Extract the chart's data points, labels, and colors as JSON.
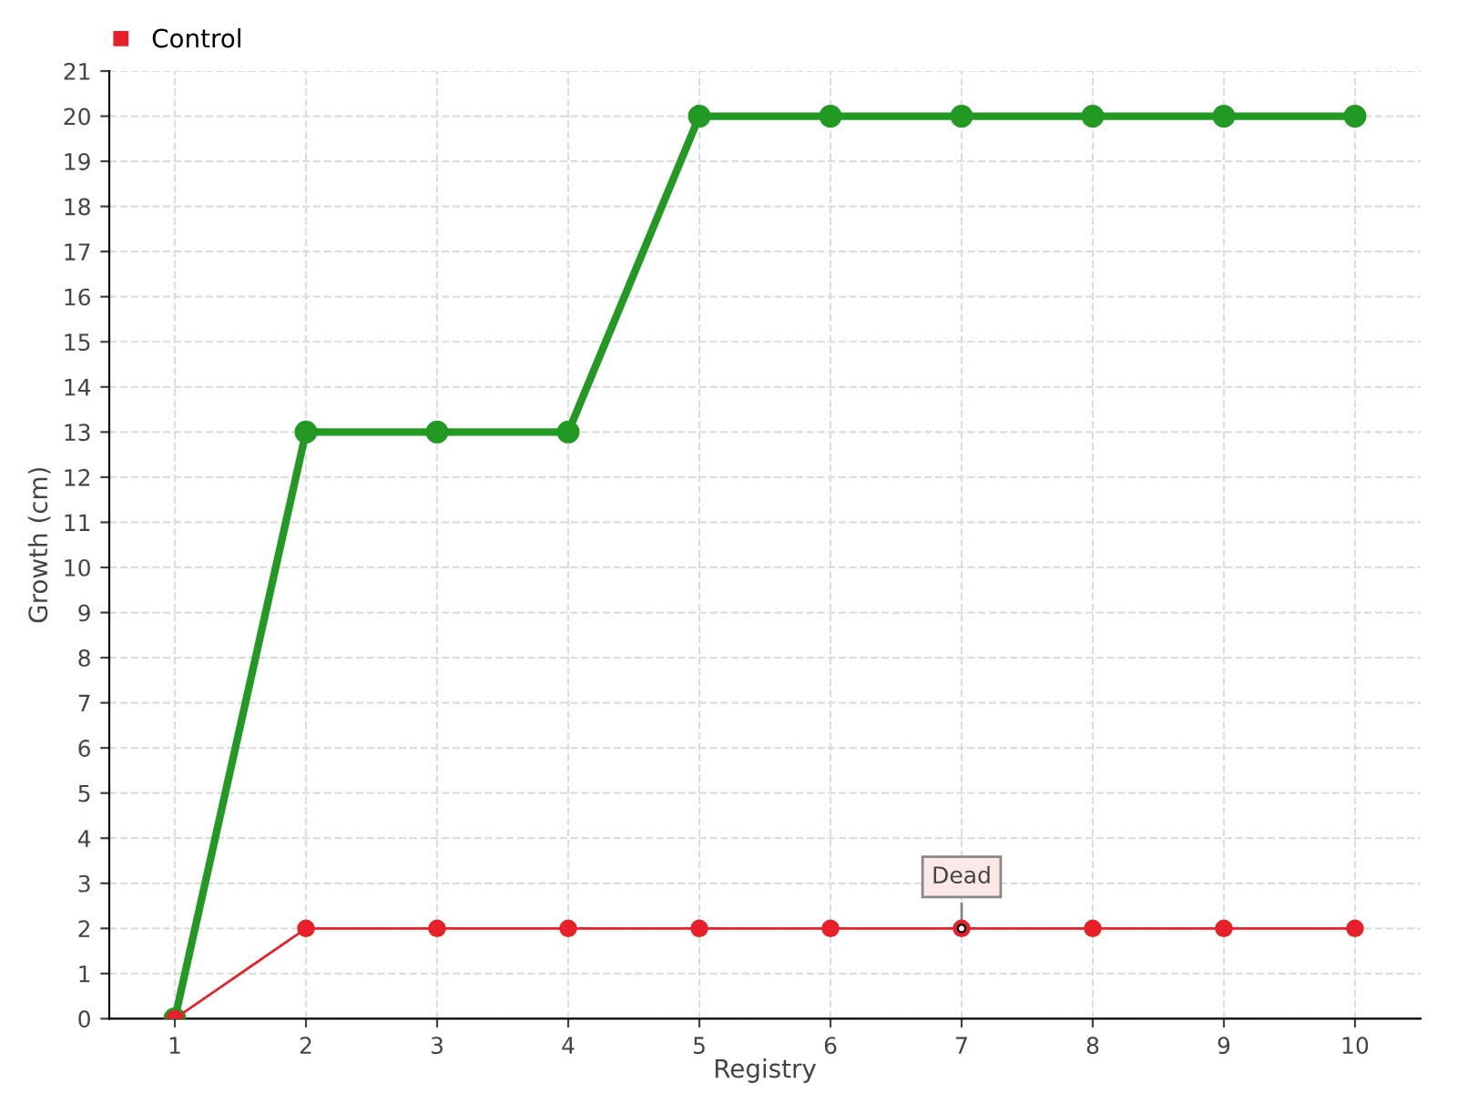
{
  "chart_data": {
    "type": "line",
    "xlabel": "Registry",
    "ylabel": "Growth (cm)",
    "categories": [
      "1",
      "2",
      "3",
      "4",
      "5",
      "6",
      "7",
      "8",
      "9",
      "10"
    ],
    "series": [
      {
        "color": "#229922",
        "values": [
          0,
          13,
          13,
          13,
          20,
          20,
          20,
          20,
          20,
          20
        ]
      },
      {
        "name": "Control",
        "color": "#e8202a",
        "values": [
          0,
          2,
          2,
          2,
          2,
          2,
          2,
          2,
          2,
          2
        ]
      }
    ],
    "annotations": [
      {
        "text": "Dead",
        "x": "7",
        "y": 2
      }
    ],
    "ylim": [
      0,
      21
    ],
    "yticks": [
      0,
      1,
      2,
      3,
      4,
      5,
      6,
      7,
      8,
      9,
      10,
      11,
      12,
      13,
      14,
      15,
      16,
      17,
      18,
      19,
      20,
      21
    ],
    "grid": true,
    "legend": "top left",
    "marker": "circle",
    "line_style": "solid"
  }
}
